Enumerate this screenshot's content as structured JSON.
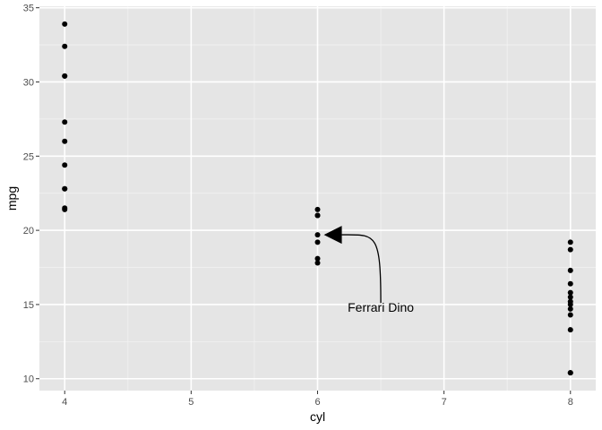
{
  "chart_data": {
    "type": "scatter",
    "title": "",
    "xlabel": "cyl",
    "ylabel": "mpg",
    "xlim": [
      3.8,
      8.2
    ],
    "ylim": [
      9.2,
      35.1
    ],
    "x_ticks": [
      4,
      5,
      6,
      7,
      8
    ],
    "y_ticks": [
      10,
      15,
      20,
      25,
      30,
      35
    ],
    "grid": true,
    "point_color": "#000000",
    "panel_background": "#e5e5e5",
    "points": [
      {
        "x": 4,
        "y": 33.9
      },
      {
        "x": 4,
        "y": 32.4
      },
      {
        "x": 4,
        "y": 30.4
      },
      {
        "x": 4,
        "y": 30.4
      },
      {
        "x": 4,
        "y": 27.3
      },
      {
        "x": 4,
        "y": 26.0
      },
      {
        "x": 4,
        "y": 24.4
      },
      {
        "x": 4,
        "y": 22.8
      },
      {
        "x": 4,
        "y": 22.8
      },
      {
        "x": 4,
        "y": 21.5
      },
      {
        "x": 4,
        "y": 21.4
      },
      {
        "x": 6,
        "y": 21.4
      },
      {
        "x": 6,
        "y": 21.0
      },
      {
        "x": 6,
        "y": 21.0
      },
      {
        "x": 6,
        "y": 19.7
      },
      {
        "x": 6,
        "y": 19.2
      },
      {
        "x": 6,
        "y": 18.1
      },
      {
        "x": 6,
        "y": 17.8
      },
      {
        "x": 8,
        "y": 19.2
      },
      {
        "x": 8,
        "y": 18.7
      },
      {
        "x": 8,
        "y": 17.3
      },
      {
        "x": 8,
        "y": 16.4
      },
      {
        "x": 8,
        "y": 15.8
      },
      {
        "x": 8,
        "y": 15.5
      },
      {
        "x": 8,
        "y": 15.2
      },
      {
        "x": 8,
        "y": 15.0
      },
      {
        "x": 8,
        "y": 14.7
      },
      {
        "x": 8,
        "y": 14.3
      },
      {
        "x": 8,
        "y": 13.3
      },
      {
        "x": 8,
        "y": 10.4
      },
      {
        "x": 8,
        "y": 10.4
      }
    ],
    "annotations": [
      {
        "text": "Ferrari Dino",
        "text_x": 6.5,
        "text_y": 14.5,
        "arrow_from": [
          6.5,
          15.1
        ],
        "arrow_to": [
          6.05,
          19.7
        ]
      }
    ]
  }
}
